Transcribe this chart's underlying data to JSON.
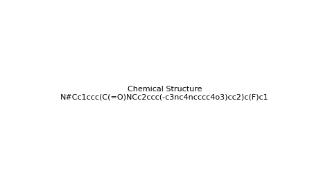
{
  "smiles": "N#Cc1ccc(C(=O)NCc2ccc(-c3nc4ncccc4o3)cc2)c(F)c1",
  "title": "",
  "background_color": "#ffffff",
  "line_color": "#000000",
  "figsize": [
    4.63,
    2.66
  ],
  "dpi": 100
}
